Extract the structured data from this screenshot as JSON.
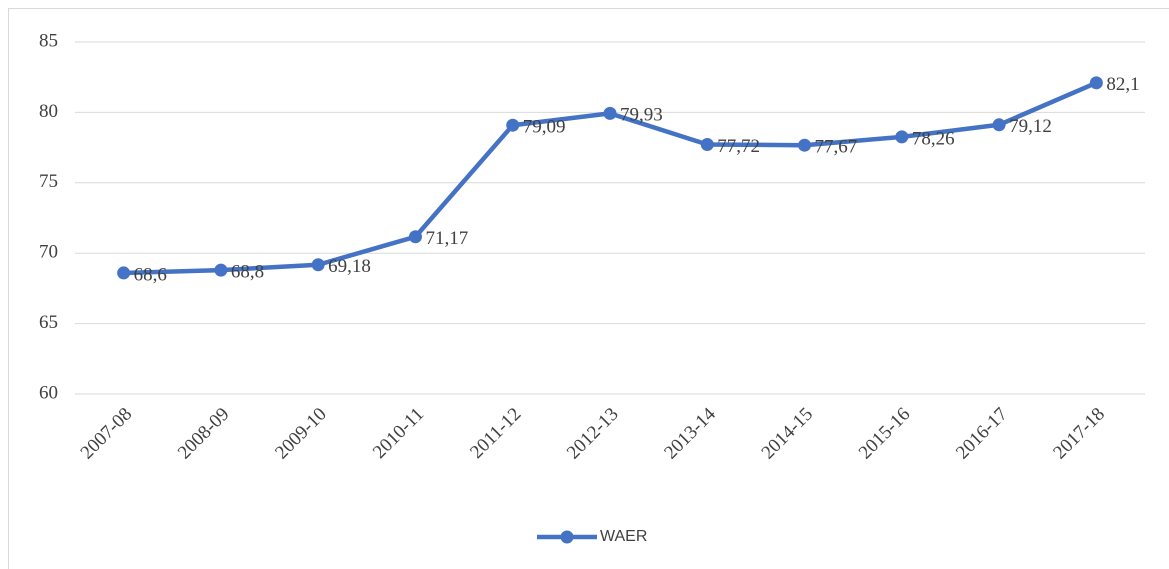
{
  "chart_data": {
    "type": "line",
    "categories": [
      "2007-08",
      "2008-09",
      "2009-10",
      "2010-11",
      "2011-12",
      "2012-13",
      "2013-14",
      "2014-15",
      "2015-16",
      "2016-17",
      "2017-18"
    ],
    "series": [
      {
        "name": "WAER",
        "color": "#4472c4",
        "values": [
          68.6,
          68.8,
          69.18,
          71.17,
          79.09,
          79.93,
          77.72,
          77.67,
          78.26,
          79.12,
          82.1
        ],
        "value_labels": [
          "68,6",
          "68,8",
          "69,18",
          "71,17",
          "79,09",
          "79,93",
          "77,72",
          "77,67",
          "78,26",
          "79,12",
          "82,1"
        ]
      }
    ],
    "ylim": [
      60,
      85
    ],
    "yticks": [
      60,
      65,
      70,
      75,
      80,
      85
    ],
    "grid": true,
    "legend": "bottom"
  }
}
